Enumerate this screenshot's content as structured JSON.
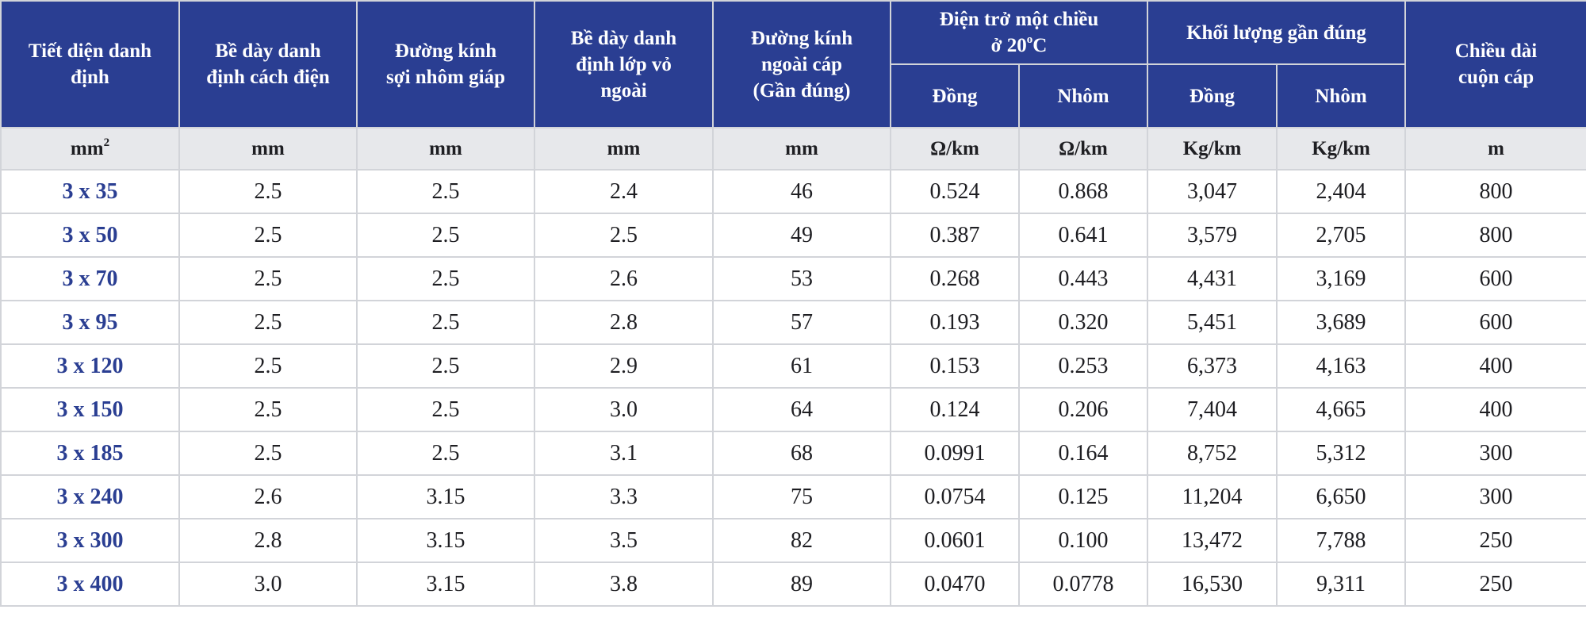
{
  "header": {
    "col1": [
      "Tiết diện danh",
      "định"
    ],
    "col2": [
      "Bề dày danh",
      "định cách điện"
    ],
    "col3": [
      "Đường kính",
      "sợi nhôm giáp"
    ],
    "col4": [
      "Bề dày danh",
      "định lớp vỏ",
      "ngoài"
    ],
    "col5": [
      "Đường kính",
      "ngoài cáp",
      "(Gần đúng)"
    ],
    "resistance_group": [
      "Điện trở một chiều",
      "ở 20",
      "o",
      "C"
    ],
    "resistance_sub": [
      "Đồng",
      "Nhôm"
    ],
    "weight_group": "Khối lượng gần đúng",
    "weight_sub": [
      "Đồng",
      "Nhôm"
    ],
    "col10": [
      "Chiều dài",
      "cuộn cáp"
    ]
  },
  "units": {
    "area_base": "mm",
    "area_exp": "2",
    "list": [
      "mm",
      "mm",
      "mm",
      "mm",
      "Ω/km",
      "Ω/km",
      "Kg/km",
      "Kg/km",
      "m"
    ]
  },
  "rows": [
    [
      "3 x 35",
      "2.5",
      "2.5",
      "2.4",
      "46",
      "0.524",
      "0.868",
      "3,047",
      "2,404",
      "800"
    ],
    [
      "3 x 50",
      "2.5",
      "2.5",
      "2.5",
      "49",
      "0.387",
      "0.641",
      "3,579",
      "2,705",
      "800"
    ],
    [
      "3 x 70",
      "2.5",
      "2.5",
      "2.6",
      "53",
      "0.268",
      "0.443",
      "4,431",
      "3,169",
      "600"
    ],
    [
      "3 x 95",
      "2.5",
      "2.5",
      "2.8",
      "57",
      "0.193",
      "0.320",
      "5,451",
      "3,689",
      "600"
    ],
    [
      "3 x 120",
      "2.5",
      "2.5",
      "2.9",
      "61",
      "0.153",
      "0.253",
      "6,373",
      "4,163",
      "400"
    ],
    [
      "3 x 150",
      "2.5",
      "2.5",
      "3.0",
      "64",
      "0.124",
      "0.206",
      "7,404",
      "4,665",
      "400"
    ],
    [
      "3 x 185",
      "2.5",
      "2.5",
      "3.1",
      "68",
      "0.0991",
      "0.164",
      "8,752",
      "5,312",
      "300"
    ],
    [
      "3 x 240",
      "2.6",
      "3.15",
      "3.3",
      "75",
      "0.0754",
      "0.125",
      "11,204",
      "6,650",
      "300"
    ],
    [
      "3 x 300",
      "2.8",
      "3.15",
      "3.5",
      "82",
      "0.0601",
      "0.100",
      "13,472",
      "7,788",
      "250"
    ],
    [
      "3 x 400",
      "3.0",
      "3.15",
      "3.8",
      "89",
      "0.0470",
      "0.0778",
      "16,530",
      "9,311",
      "250"
    ]
  ],
  "colors": {
    "header_bg": "#2a3e92",
    "unit_row_bg": "#e7e8eb",
    "size_text": "#2a3e92",
    "border": "#d2d4d9"
  }
}
